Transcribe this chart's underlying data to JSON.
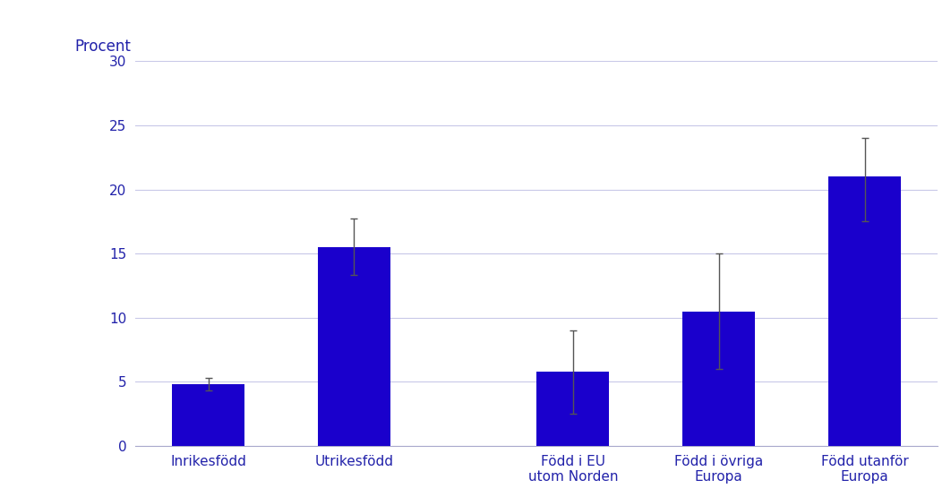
{
  "categories": [
    "Inrikesfödd",
    "Utrikesfödd",
    "Född i EU\nutom Norden",
    "Född i övriga\nEuropa",
    "Född utanför\nEuropa"
  ],
  "values": [
    4.8,
    15.5,
    5.8,
    10.5,
    21.0
  ],
  "yerr_lower": [
    0.5,
    2.2,
    3.3,
    4.5,
    3.5
  ],
  "yerr_upper": [
    0.5,
    2.2,
    3.2,
    4.5,
    3.0
  ],
  "bar_color": "#1a00cc",
  "bar_width": 0.5,
  "ylabel": "Procent",
  "ylim": [
    0,
    30
  ],
  "yticks": [
    0,
    5,
    10,
    15,
    20,
    25,
    30
  ],
  "grid_color": "#c8c8e8",
  "tick_color": "#2222aa",
  "label_color": "#2222aa",
  "ylabel_color": "#2222aa",
  "errorbar_color": "#555555",
  "errorbar_capsize": 3,
  "errorbar_linewidth": 1.0,
  "font_size_ticks": 11,
  "font_size_ylabel": 12,
  "x_positions": [
    0,
    1,
    2.5,
    3.5,
    4.5
  ]
}
